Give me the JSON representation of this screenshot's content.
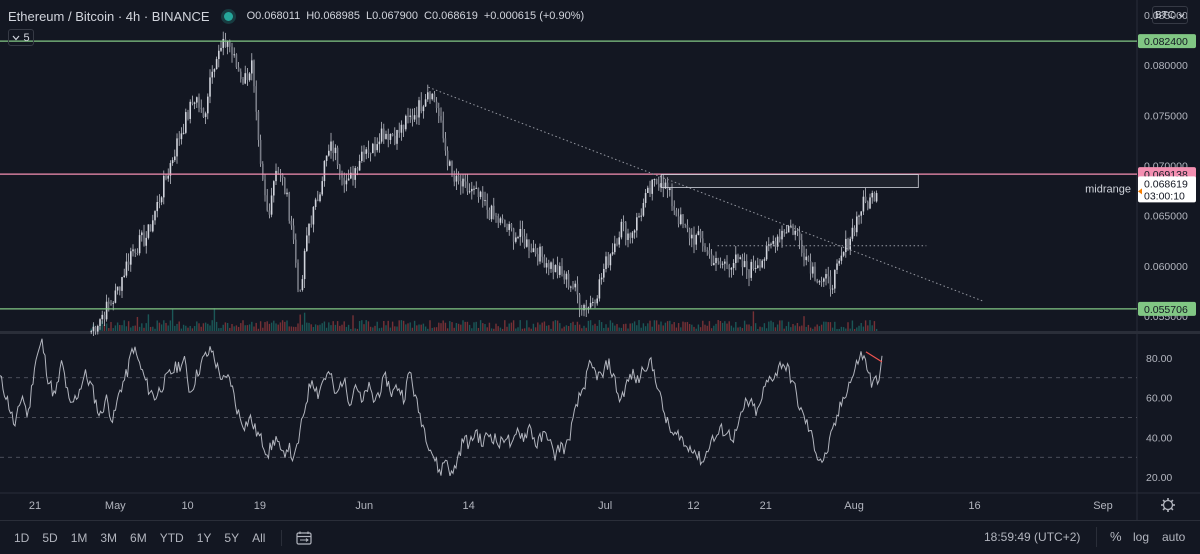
{
  "header": {
    "symbol": "Ethereum / Bitcoin · 4h · BINANCE",
    "open": "O0.068011",
    "high": "H0.068985",
    "low": "L0.067900",
    "close": "C0.068619",
    "change": "+0.000615 (+0.90%)",
    "collapse_label": "5",
    "currency": "BTC"
  },
  "colors": {
    "background": "#131722",
    "candle": "#d1d4dc",
    "support_line": "#81c784",
    "resistance_line": "#f48fb1",
    "rsi_line": "#b2b5be",
    "rsi_divergence": "#ef5350",
    "volume_up": "#26a69a",
    "volume_down": "#ef5350"
  },
  "chart_data": [
    {
      "type": "candlestick",
      "title": "Ethereum / Bitcoin · 4h · BINANCE",
      "x": [
        "21",
        "May",
        "10",
        "19",
        "Jun",
        "14",
        "Jul",
        "12",
        "21",
        "Aug",
        "16",
        "Sep"
      ],
      "price_ticks": [
        "0.055000",
        "0.060000",
        "0.065000",
        "0.070000",
        "0.075000",
        "0.080000",
        "0.085000"
      ],
      "ylim": [
        0.0535,
        0.0865
      ],
      "series": [
        {
          "path": [
            [
              "Apr 28",
              0.0535
            ],
            [
              "May 1",
              0.057
            ],
            [
              "May 3",
              0.0615
            ],
            [
              "May 5",
              0.063
            ],
            [
              "May 7",
              0.068
            ],
            [
              "May 9",
              0.073
            ],
            [
              "May 11",
              0.077
            ],
            [
              "May 12",
              0.0745
            ],
            [
              "May 13",
              0.08
            ],
            [
              "May 15",
              0.0825
            ],
            [
              "May 16",
              0.08
            ],
            [
              "May 17",
              0.0785
            ],
            [
              "May 18",
              0.08
            ],
            [
              "May 19",
              0.07
            ],
            [
              "May 20",
              0.065
            ],
            [
              "May 21",
              0.07
            ],
            [
              "May 22",
              0.068
            ],
            [
              "May 23",
              0.064
            ],
            [
              "May 24",
              0.0565
            ],
            [
              "May 25",
              0.064
            ],
            [
              "May 26",
              0.066
            ],
            [
              "May 27",
              0.07
            ],
            [
              "May 28",
              0.072
            ],
            [
              "May 30",
              0.068
            ],
            [
              "May 31",
              0.07
            ],
            [
              "Jun 1",
              0.072
            ],
            [
              "Jun 2",
              0.0715
            ],
            [
              "Jun 3",
              0.0735
            ],
            [
              "Jun 5",
              0.073
            ],
            [
              "Jun 6",
              0.074
            ],
            [
              "Jun 8",
              0.076
            ],
            [
              "Jun 9",
              0.0778
            ],
            [
              "Jun 10",
              0.076
            ],
            [
              "Jun 11",
              0.072
            ],
            [
              "Jun 12",
              0.0685
            ],
            [
              "Jun 14",
              0.0675
            ],
            [
              "Jun 15",
              0.067
            ],
            [
              "Jun 17",
              0.065
            ],
            [
              "Jun 19",
              0.0635
            ],
            [
              "Jun 21",
              0.0625
            ],
            [
              "Jun 23",
              0.061
            ],
            [
              "Jun 25",
              0.0595
            ],
            [
              "Jun 27",
              0.058
            ],
            [
              "Jun 28",
              0.0562
            ],
            [
              "Jun 29",
              0.056
            ],
            [
              "Jun 30",
              0.0575
            ],
            [
              "Jul 1",
              0.06
            ],
            [
              "Jul 2",
              0.062
            ],
            [
              "Jul 3",
              0.064
            ],
            [
              "Jul 4",
              0.063
            ],
            [
              "Jul 5",
              0.0645
            ],
            [
              "Jul 6",
              0.0665
            ],
            [
              "Jul 7",
              0.068
            ],
            [
              "Jul 8",
              0.0688
            ],
            [
              "Jul 9",
              0.067
            ],
            [
              "Jul 10",
              0.065
            ],
            [
              "Jul 11",
              0.0635
            ],
            [
              "Jul 12",
              0.0628
            ],
            [
              "Jul 13",
              0.0625
            ],
            [
              "Jul 14",
              0.061
            ],
            [
              "Jul 15",
              0.06
            ],
            [
              "Jul 17",
              0.0605
            ],
            [
              "Jul 18",
              0.06
            ],
            [
              "Jul 19",
              0.0595
            ],
            [
              "Jul 20",
              0.0605
            ],
            [
              "Jul 21",
              0.061
            ],
            [
              "Jul 22",
              0.0625
            ],
            [
              "Jul 23",
              0.0635
            ],
            [
              "Jul 24",
              0.064
            ],
            [
              "Jul 25",
              0.063
            ],
            [
              "Jul 26",
              0.061
            ],
            [
              "Jul 27",
              0.0595
            ],
            [
              "Jul 28",
              0.0585
            ],
            [
              "Jul 29",
              0.0582
            ],
            [
              "Jul 30",
              0.0595
            ],
            [
              "Jul 31",
              0.062
            ],
            [
              "Aug 1",
              0.064
            ],
            [
              "Aug 2",
              0.066
            ],
            [
              "Aug 3",
              0.0665
            ],
            [
              "Aug 4",
              0.068
            ],
            [
              "Aug 4",
              0.0686
            ]
          ]
        }
      ],
      "horizontal_levels": [
        {
          "value": 0.0824,
          "label": "0.082400",
          "color": "#81c784"
        },
        {
          "value": 0.069138,
          "label": "0.069138",
          "color": "#f48fb1"
        },
        {
          "value": 0.055706,
          "label": "0.055706",
          "color": "#81c784"
        }
      ],
      "last_price": {
        "value": 0.068619,
        "label": "0.068619",
        "countdown": "03:00:10"
      },
      "annotations": [
        {
          "text": "midrange"
        }
      ],
      "grid": false
    },
    {
      "type": "line",
      "title": "",
      "rsi_ticks": [
        "20.00",
        "40.00",
        "60.00",
        "80.00"
      ],
      "ylim": [
        12,
        92
      ],
      "guides": [
        30,
        50,
        70
      ],
      "series": [
        {
          "values": [
            [
              0,
              70
            ],
            [
              8,
              58
            ],
            [
              15,
              45
            ],
            [
              22,
              62
            ],
            [
              28,
              50
            ],
            [
              35,
              78
            ],
            [
              42,
              88
            ],
            [
              48,
              70
            ],
            [
              55,
              60
            ],
            [
              62,
              78
            ],
            [
              70,
              55
            ],
            [
              78,
              62
            ],
            [
              85,
              72
            ],
            [
              92,
              65
            ],
            [
              100,
              50
            ],
            [
              106,
              60
            ],
            [
              113,
              48
            ],
            [
              120,
              64
            ],
            [
              127,
              72
            ],
            [
              133,
              86
            ],
            [
              140,
              76
            ],
            [
              148,
              65
            ],
            [
              155,
              60
            ],
            [
              162,
              66
            ],
            [
              170,
              72
            ],
            [
              178,
              76
            ],
            [
              185,
              78
            ],
            [
              190,
              62
            ],
            [
              197,
              72
            ],
            [
              204,
              80
            ],
            [
              212,
              84
            ],
            [
              218,
              74
            ],
            [
              224,
              68
            ],
            [
              230,
              70
            ],
            [
              236,
              56
            ],
            [
              240,
              50
            ],
            [
              245,
              46
            ],
            [
              250,
              50
            ],
            [
              255,
              44
            ],
            [
              262,
              38
            ],
            [
              268,
              32
            ],
            [
              276,
              40
            ],
            [
              282,
              30
            ],
            [
              288,
              36
            ],
            [
              294,
              28
            ],
            [
              300,
              42
            ],
            [
              306,
              58
            ],
            [
              312,
              70
            ],
            [
              318,
              62
            ],
            [
              324,
              70
            ],
            [
              330,
              72
            ],
            [
              336,
              60
            ],
            [
              343,
              70
            ],
            [
              350,
              58
            ],
            [
              356,
              68
            ],
            [
              362,
              56
            ],
            [
              368,
              66
            ],
            [
              374,
              58
            ],
            [
              380,
              64
            ],
            [
              386,
              70
            ],
            [
              392,
              62
            ],
            [
              398,
              66
            ],
            [
              404,
              60
            ],
            [
              410,
              74
            ],
            [
              416,
              58
            ],
            [
              422,
              48
            ],
            [
              428,
              38
            ],
            [
              434,
              30
            ],
            [
              440,
              22
            ],
            [
              446,
              30
            ],
            [
              452,
              20
            ],
            [
              458,
              30
            ],
            [
              464,
              40
            ],
            [
              470,
              36
            ],
            [
              476,
              44
            ],
            [
              482,
              36
            ],
            [
              488,
              42
            ],
            [
              494,
              40
            ],
            [
              500,
              36
            ],
            [
              506,
              42
            ],
            [
              512,
              34
            ],
            [
              518,
              44
            ],
            [
              524,
              40
            ],
            [
              530,
              46
            ],
            [
              536,
              36
            ],
            [
              542,
              40
            ],
            [
              548,
              42
            ],
            [
              554,
              30
            ],
            [
              560,
              36
            ],
            [
              566,
              34
            ],
            [
              572,
              46
            ],
            [
              578,
              58
            ],
            [
              584,
              66
            ],
            [
              590,
              76
            ],
            [
              596,
              72
            ],
            [
              602,
              70
            ],
            [
              608,
              78
            ],
            [
              614,
              70
            ],
            [
              620,
              58
            ],
            [
              626,
              66
            ],
            [
              632,
              72
            ],
            [
              638,
              68
            ],
            [
              644,
              76
            ],
            [
              650,
              78
            ],
            [
              656,
              70
            ],
            [
              662,
              56
            ],
            [
              668,
              46
            ],
            [
              674,
              40
            ],
            [
              680,
              42
            ],
            [
              686,
              34
            ],
            [
              692,
              36
            ],
            [
              698,
              30
            ],
            [
              704,
              28
            ],
            [
              710,
              38
            ],
            [
              716,
              40
            ],
            [
              722,
              44
            ],
            [
              728,
              42
            ],
            [
              734,
              40
            ],
            [
              740,
              48
            ],
            [
              746,
              58
            ],
            [
              752,
              56
            ],
            [
              758,
              52
            ],
            [
              764,
              64
            ],
            [
              770,
              70
            ],
            [
              776,
              72
            ],
            [
              782,
              78
            ],
            [
              788,
              74
            ],
            [
              794,
              66
            ],
            [
              800,
              54
            ],
            [
              806,
              48
            ],
            [
              812,
              40
            ],
            [
              818,
              30
            ],
            [
              824,
              28
            ],
            [
              830,
              38
            ],
            [
              836,
              48
            ],
            [
              842,
              58
            ],
            [
              848,
              66
            ],
            [
              854,
              72
            ],
            [
              860,
              82
            ],
            [
              866,
              78
            ],
            [
              872,
              66
            ],
            [
              878,
              70
            ],
            [
              882,
              78
            ]
          ]
        }
      ],
      "divergence": {
        "from": [
          866,
          83
        ],
        "to": [
          882,
          78
        ]
      },
      "grid": false
    }
  ],
  "footer": {
    "ranges": [
      "1D",
      "5D",
      "1M",
      "3M",
      "6M",
      "YTD",
      "1Y",
      "5Y",
      "All"
    ],
    "clock": "18:59:49 (UTC+2)",
    "percent": "%",
    "log": "log",
    "auto": "auto",
    "date_range_icon": "calendar-range-icon",
    "settings_icon": "gear-icon"
  }
}
